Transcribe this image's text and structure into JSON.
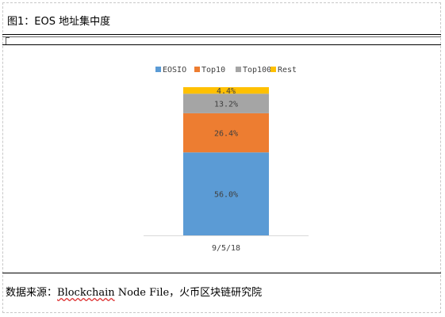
{
  "figure": {
    "title": "图1：EOS 地址集中度",
    "source_prefix": "数据来源：",
    "source_highlight": "Blockchain",
    "source_suffix": " Node File，火币区块链研究院"
  },
  "chart_data": {
    "type": "bar",
    "stacked": true,
    "categories": [
      "9/5/18"
    ],
    "series": [
      {
        "name": "EOSIO",
        "values": [
          56.0
        ],
        "label": "56.0%",
        "color": "#5b9bd5"
      },
      {
        "name": "Top10",
        "values": [
          26.4
        ],
        "label": "26.4%",
        "color": "#ed7d31"
      },
      {
        "name": "Top100",
        "values": [
          13.2
        ],
        "label": "13.2%",
        "color": "#a5a5a5"
      },
      {
        "name": "Rest",
        "values": [
          4.4
        ],
        "label": "4.4%",
        "color": "#ffc000"
      }
    ],
    "ylim": [
      0,
      100
    ],
    "legend_position": "top",
    "grid": false
  }
}
